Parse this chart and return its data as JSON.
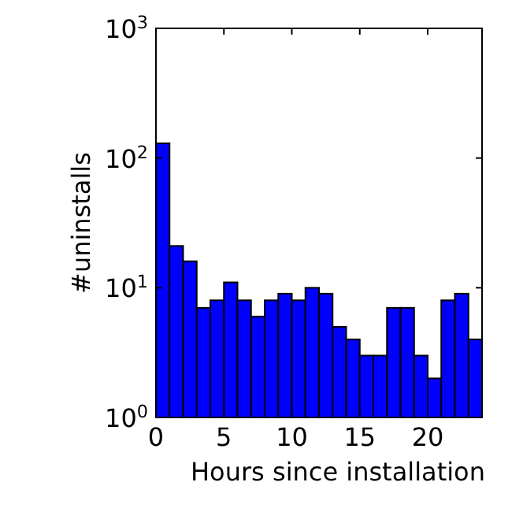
{
  "chart_data": {
    "type": "histogram",
    "xlabel": "Hours since installation",
    "ylabel": "#uninstalls",
    "bins": [
      0,
      1,
      2,
      3,
      4,
      5,
      6,
      7,
      8,
      9,
      10,
      11,
      12,
      13,
      14,
      15,
      16,
      17,
      18,
      19,
      20,
      21,
      22,
      23,
      24
    ],
    "values": [
      130,
      21,
      16,
      7,
      8,
      11,
      8,
      6,
      8,
      9,
      8,
      10,
      9,
      5,
      4,
      3,
      3,
      7,
      7,
      3,
      2,
      8,
      9,
      4
    ],
    "color": "#0000ff",
    "log": true,
    "xlim": [
      0,
      24
    ],
    "xticks": [
      0,
      5,
      10,
      15,
      20
    ],
    "ylim": [
      1,
      1000
    ],
    "yticks": [
      {
        "value": 1,
        "label": "10$^{0}$"
      },
      {
        "value": 10,
        "label": "10$^{1}$"
      },
      {
        "value": 100,
        "label": "10$^{2}$"
      },
      {
        "value": 1000,
        "label": "10$^{3}$"
      }
    ],
    "grid": false
  }
}
